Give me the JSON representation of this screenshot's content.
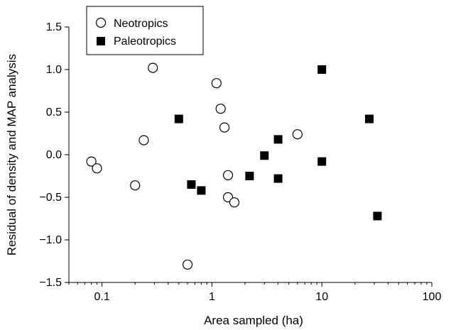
{
  "chart_data": {
    "type": "scatter",
    "title": "",
    "xlabel": "Area sampled (ha)",
    "ylabel": "Residual of density and MAP analysis",
    "x_scale": "log",
    "xlim": [
      0.05,
      100
    ],
    "ylim": [
      -1.5,
      1.5
    ],
    "x_ticks": [
      0.1,
      1,
      10,
      100
    ],
    "x_tick_labels": [
      "0.1",
      "1",
      "10",
      "100"
    ],
    "y_ticks": [
      -1.5,
      -1.0,
      -0.5,
      0.0,
      0.5,
      1.0,
      1.5
    ],
    "y_tick_labels": [
      "−1.5",
      "−1.0",
      "−0.5",
      "0.0",
      "0.5",
      "1.0",
      "1.5"
    ],
    "grid": false,
    "legend_position": "top-left",
    "series": [
      {
        "name": "Neotropics",
        "marker": "open-circle",
        "color": "#000000",
        "points": [
          {
            "x": 0.08,
            "y": -0.08
          },
          {
            "x": 0.09,
            "y": -0.16
          },
          {
            "x": 0.2,
            "y": -0.36
          },
          {
            "x": 0.24,
            "y": 0.17
          },
          {
            "x": 0.29,
            "y": 1.02
          },
          {
            "x": 0.6,
            "y": -1.29
          },
          {
            "x": 1.1,
            "y": 0.84
          },
          {
            "x": 1.2,
            "y": 0.54
          },
          {
            "x": 1.3,
            "y": 0.32
          },
          {
            "x": 1.4,
            "y": -0.24
          },
          {
            "x": 1.4,
            "y": -0.5
          },
          {
            "x": 1.6,
            "y": -0.56
          },
          {
            "x": 6.0,
            "y": 0.24
          }
        ]
      },
      {
        "name": "Paleotropics",
        "marker": "filled-square",
        "color": "#000000",
        "points": [
          {
            "x": 0.5,
            "y": 0.42
          },
          {
            "x": 0.65,
            "y": -0.35
          },
          {
            "x": 0.8,
            "y": -0.42
          },
          {
            "x": 2.2,
            "y": -0.25
          },
          {
            "x": 3.0,
            "y": -0.01
          },
          {
            "x": 4.0,
            "y": -0.28
          },
          {
            "x": 4.0,
            "y": 0.18
          },
          {
            "x": 10.0,
            "y": 1.0
          },
          {
            "x": 10.0,
            "y": -0.08
          },
          {
            "x": 27.0,
            "y": 0.42
          },
          {
            "x": 32.0,
            "y": -0.72
          }
        ]
      }
    ]
  }
}
